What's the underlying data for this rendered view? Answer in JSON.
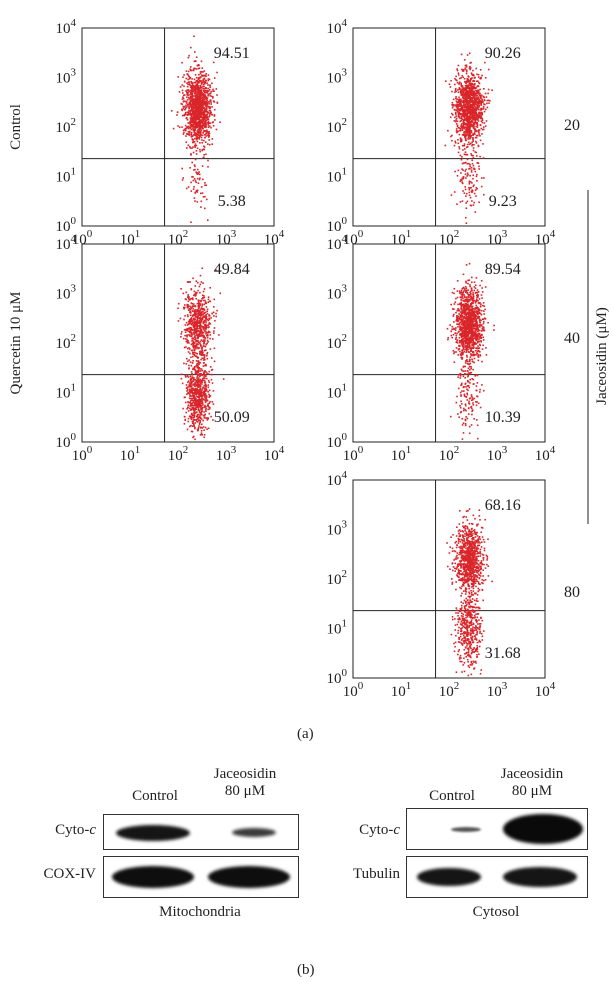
{
  "panel_a": {
    "label": "(a)",
    "axis_ticks": [
      "10",
      "0",
      "1",
      "2",
      "3",
      "4"
    ],
    "tick_labels": [
      "10⁰",
      "10¹",
      "10²",
      "10³",
      "10⁴"
    ],
    "row_labels": {
      "control": "Control",
      "quercetin": "Quercetin 10 μM"
    },
    "dose_labels": [
      "20",
      "40",
      "80"
    ],
    "group_label": "Jaceosidin (μM)",
    "dot_color": "#d9252a"
  },
  "chart_data": [
    {
      "type": "scatter",
      "name_printed": "",
      "panel": "Control",
      "upper_right_pct": 94.51,
      "lower_right_pct": 5.38,
      "xlim": [
        "10⁰",
        "10⁴"
      ],
      "ylim": [
        "10⁰",
        "10⁴"
      ]
    },
    {
      "type": "scatter",
      "panel": "Jaceosidin 20",
      "upper_right_pct": 90.26,
      "lower_right_pct": 9.23,
      "xlim": [
        "10⁰",
        "10⁴"
      ],
      "ylim": [
        "10⁰",
        "10⁴"
      ]
    },
    {
      "type": "scatter",
      "panel": "Quercetin 10 μM",
      "upper_right_pct": 49.84,
      "lower_right_pct": 50.09,
      "xlim": [
        "10⁰",
        "10⁴"
      ],
      "ylim": [
        "10⁰",
        "10⁴"
      ]
    },
    {
      "type": "scatter",
      "panel": "Jaceosidin 40",
      "upper_right_pct": 89.54,
      "lower_right_pct": 10.39,
      "xlim": [
        "10⁰",
        "10⁴"
      ],
      "ylim": [
        "10⁰",
        "10⁴"
      ]
    },
    {
      "type": "scatter",
      "panel": "Jaceosidin 80",
      "upper_right_pct": 68.16,
      "lower_right_pct": 31.68,
      "xlim": [
        "10⁰",
        "10⁴"
      ],
      "ylim": [
        "10⁰",
        "10⁴"
      ]
    }
  ],
  "panel_b": {
    "label": "(b)",
    "left": {
      "col1": "Control",
      "col2_line1": "Jaceosidin",
      "col2_line2": "80 μM",
      "row1": "Cyto-c",
      "row2": "COX-IV",
      "footer": "Mitochondria"
    },
    "right": {
      "col1": "Control",
      "col2_line1": "Jaceosidin",
      "col2_line2": "80 μM",
      "row1": "Cyto-c",
      "row2": "Tubulin",
      "footer": "Cytosol"
    }
  }
}
